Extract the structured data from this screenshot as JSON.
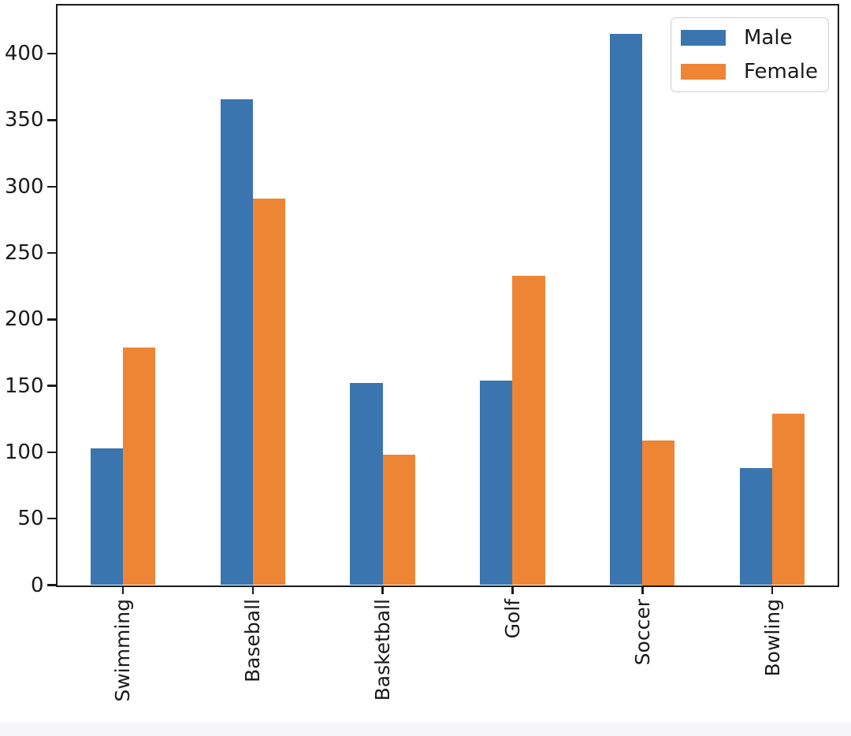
{
  "chart_data": {
    "type": "bar",
    "title": "",
    "xlabel": "",
    "ylabel": "",
    "categories": [
      "Swimming",
      "Baseball",
      "Basketball",
      "Golf",
      "Soccer",
      "Bowling"
    ],
    "series": [
      {
        "name": "Male",
        "color": "#3b75b0",
        "values": [
          103,
          366,
          152,
          154,
          415,
          88
        ]
      },
      {
        "name": "Female",
        "color": "#ee8534",
        "values": [
          179,
          291,
          98,
          233,
          109,
          129
        ]
      }
    ],
    "ylim": [
      0,
      436
    ],
    "yticks": [
      0,
      50,
      100,
      150,
      200,
      250,
      300,
      350,
      400
    ],
    "grid": false,
    "legend": {
      "position": "upper right",
      "items": [
        "Male",
        "Female"
      ]
    },
    "bar_group_width_fraction": 0.5,
    "x_tick_label_rotation": 90
  }
}
